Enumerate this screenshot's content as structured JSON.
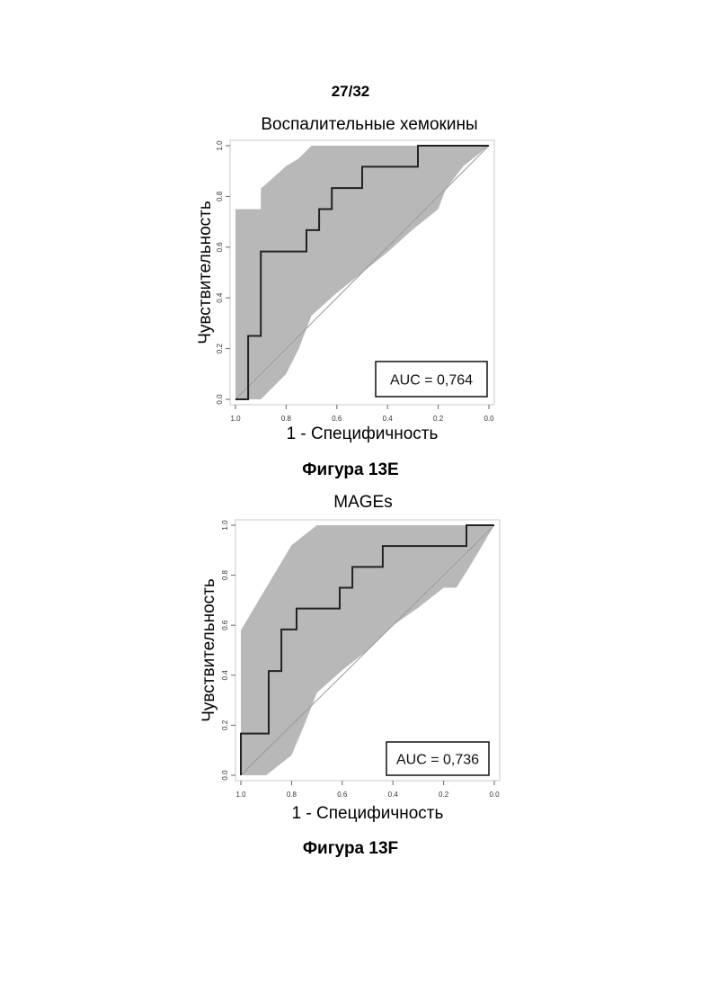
{
  "page": {
    "page_number": "27/32"
  },
  "figures": [
    {
      "caption": "Фигура 13E"
    },
    {
      "caption": "Фигура 13F"
    }
  ],
  "chart_data": [
    {
      "type": "line",
      "title": "Воспалительные хемокины",
      "xlabel": "1 - Специфичность",
      "ylabel": "Чувствительность",
      "xlim": [
        1.0,
        0.0
      ],
      "ylim": [
        0.0,
        1.0
      ],
      "x_reversed": true,
      "x_ticks": [
        "1.0",
        "0.8",
        "0.6",
        "0.4",
        "0.2",
        "0.0"
      ],
      "y_ticks": [
        "0.0",
        "0.2",
        "0.4",
        "0.6",
        "0.8",
        "1.0"
      ],
      "annotation": "AUC = 0,764",
      "colors": {
        "band": "#b8b8b8",
        "curve": "#222222",
        "diagonal": "#9a9a9a"
      },
      "roc_curve": {
        "x": [
          1.0,
          0.95,
          0.95,
          0.9,
          0.9,
          0.72,
          0.72,
          0.67,
          0.67,
          0.62,
          0.62,
          0.5,
          0.5,
          0.28,
          0.28,
          0.17,
          0.17,
          0.0
        ],
        "y": [
          0.0,
          0.0,
          0.25,
          0.25,
          0.583,
          0.583,
          0.667,
          0.667,
          0.75,
          0.75,
          0.833,
          0.833,
          0.917,
          0.917,
          1.0,
          1.0,
          1.0,
          1.0
        ]
      },
      "confidence_band": {
        "upper": {
          "x": [
            1.0,
            1.0,
            0.9,
            0.9,
            0.8,
            0.75,
            0.7,
            0.0
          ],
          "y": [
            0.0,
            0.75,
            0.75,
            0.83,
            0.92,
            0.95,
            1.0,
            1.0
          ]
        },
        "lower": {
          "x": [
            1.0,
            0.95,
            0.9,
            0.8,
            0.75,
            0.7,
            0.6,
            0.5,
            0.4,
            0.3,
            0.2,
            0.17,
            0.1,
            0.0
          ],
          "y": [
            0.0,
            0.0,
            0.0,
            0.1,
            0.2,
            0.33,
            0.42,
            0.5,
            0.58,
            0.67,
            0.75,
            0.83,
            0.92,
            1.0
          ]
        }
      }
    },
    {
      "type": "line",
      "title": "MAGEs",
      "xlabel": "1 - Специфичность",
      "ylabel": "Чувствительность",
      "xlim": [
        1.0,
        0.0
      ],
      "ylim": [
        0.0,
        1.0
      ],
      "x_reversed": true,
      "x_ticks": [
        "1.0",
        "0.8",
        "0.6",
        "0.4",
        "0.2",
        "0.0"
      ],
      "y_ticks": [
        "0.0",
        "0.2",
        "0.4",
        "0.6",
        "0.8",
        "1.0"
      ],
      "annotation": "AUC = 0,736",
      "colors": {
        "band": "#b8b8b8",
        "curve": "#222222",
        "diagonal": "#9a9a9a"
      },
      "roc_curve": {
        "x": [
          1.0,
          1.0,
          0.89,
          0.89,
          0.84,
          0.84,
          0.78,
          0.78,
          0.61,
          0.61,
          0.56,
          0.56,
          0.44,
          0.44,
          0.11,
          0.11,
          0.0
        ],
        "y": [
          0.0,
          0.167,
          0.167,
          0.417,
          0.417,
          0.583,
          0.583,
          0.667,
          0.667,
          0.75,
          0.75,
          0.833,
          0.833,
          0.917,
          0.917,
          1.0,
          1.0
        ]
      },
      "confidence_band": {
        "upper": {
          "x": [
            1.0,
            1.0,
            0.9,
            0.8,
            0.7,
            0.0
          ],
          "y": [
            0.0,
            0.58,
            0.75,
            0.92,
            1.0,
            1.0
          ]
        },
        "lower": {
          "x": [
            1.0,
            0.9,
            0.8,
            0.75,
            0.7,
            0.6,
            0.5,
            0.4,
            0.3,
            0.2,
            0.15,
            0.1,
            0.0
          ],
          "y": [
            0.0,
            0.0,
            0.08,
            0.2,
            0.33,
            0.42,
            0.5,
            0.6,
            0.67,
            0.75,
            0.75,
            0.83,
            1.0
          ]
        }
      }
    }
  ]
}
